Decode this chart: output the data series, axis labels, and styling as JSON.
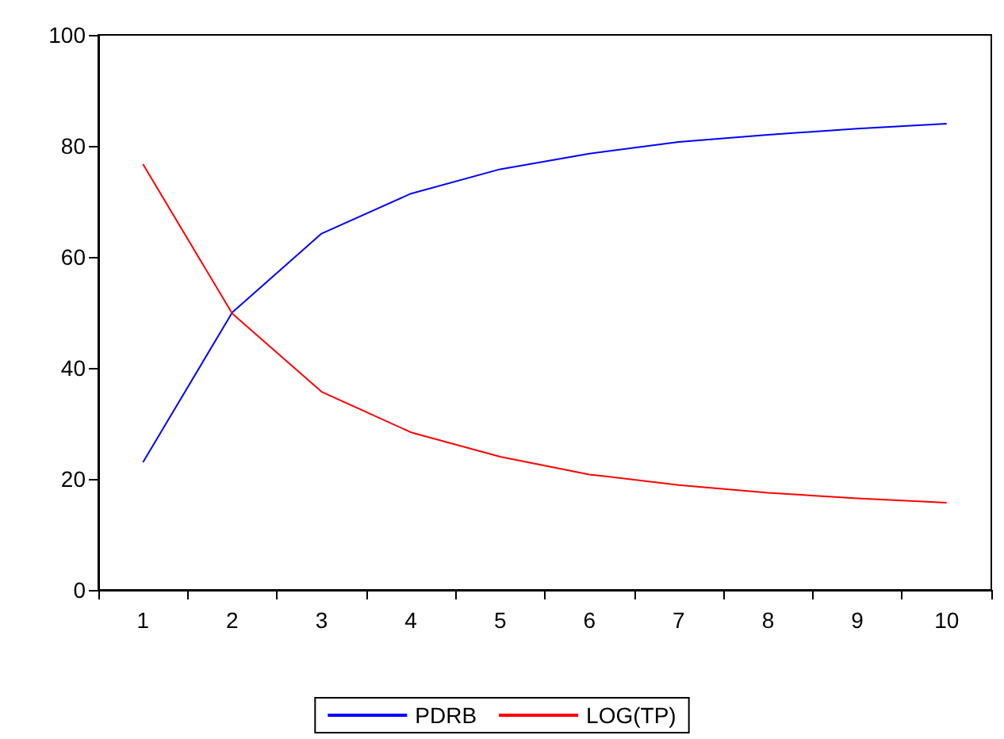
{
  "chart_data": {
    "type": "line",
    "categories": [
      "1",
      "2",
      "3",
      "4",
      "5",
      "6",
      "7",
      "8",
      "9",
      "10"
    ],
    "series": [
      {
        "name": "PDRB",
        "color": "#0000ff",
        "values": [
          23,
          50,
          64.2,
          71.4,
          75.8,
          78.6,
          80.7,
          82,
          83.1,
          84
        ]
      },
      {
        "name": "LOG(TP)",
        "color": "#ff0000",
        "values": [
          76.7,
          49.8,
          35.7,
          28.4,
          24,
          20.8,
          18.9,
          17.5,
          16.5,
          15.7
        ]
      }
    ],
    "ylim": [
      0,
      100
    ],
    "yticks": [
      0,
      20,
      40,
      60,
      80,
      100
    ],
    "grid": false,
    "legend": "bottom",
    "marker": "none",
    "line_style": "solid"
  }
}
